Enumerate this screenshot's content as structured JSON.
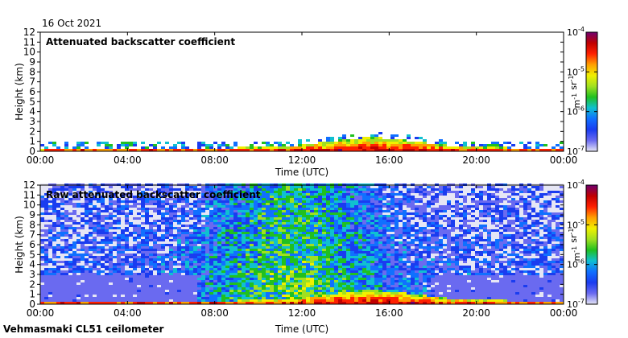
{
  "header": {
    "date": "16 Oct 2021"
  },
  "footer": {
    "instrument": "Vehmasmaki CL51 ceilometer"
  },
  "colorbar_ticks": [
    "10-4",
    "10-5",
    "10-6",
    "10-7"
  ],
  "colorbar_unit": "m-1 sr-1",
  "colormap": [
    "#e6e6f5",
    "#6a6af0",
    "#1a3cf0",
    "#1070ff",
    "#10c0d0",
    "#20c020",
    "#a0e020",
    "#f0f000",
    "#ffa000",
    "#ff2000",
    "#c00000",
    "#700070"
  ],
  "chart_data": [
    {
      "type": "heatmap",
      "title": "Attenuated backscatter coefficient",
      "xlabel": "Time (UTC)",
      "ylabel": "Height (km)",
      "x_ticks": [
        "00:00",
        "04:00",
        "08:00",
        "12:00",
        "16:00",
        "20:00",
        "00:00"
      ],
      "y_ticks": [
        0,
        1,
        2,
        3,
        4,
        5,
        6,
        7,
        8,
        9,
        10,
        11,
        12
      ],
      "xlim": [
        "00:00",
        "24:00"
      ],
      "ylim": [
        0,
        12
      ],
      "color_scale": "log",
      "clim": [
        1e-07,
        0.0001
      ],
      "colorbar_label": "m-1 sr-1"
    },
    {
      "type": "heatmap",
      "title": "Raw attenuated backscatter coefficient",
      "xlabel": "Time (UTC)",
      "ylabel": "Height (km)",
      "x_ticks": [
        "00:00",
        "04:00",
        "08:00",
        "12:00",
        "16:00",
        "20:00",
        "00:00"
      ],
      "y_ticks": [
        0,
        1,
        2,
        3,
        4,
        5,
        6,
        7,
        8,
        9,
        10,
        11,
        12
      ],
      "xlim": [
        "00:00",
        "24:00"
      ],
      "ylim": [
        0,
        12
      ],
      "color_scale": "log",
      "clim": [
        1e-07,
        0.0001
      ],
      "colorbar_label": "m-1 sr-1"
    }
  ]
}
